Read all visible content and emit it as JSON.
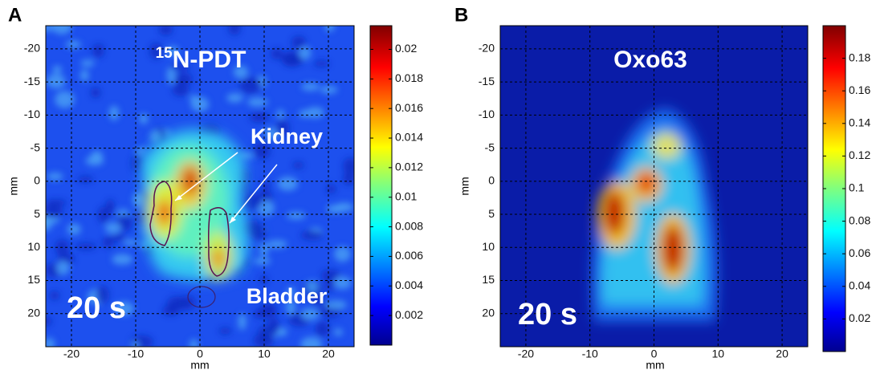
{
  "chart_data": [
    {
      "type": "heatmap",
      "panel_label": "A",
      "title_superscript": "15",
      "title": "N-PDT",
      "xlabel": "mm",
      "ylabel": "mm",
      "xlim": [
        -24,
        24
      ],
      "ylim": [
        -23.5,
        25
      ],
      "y_inverted": true,
      "xticks": [
        -20,
        -10,
        0,
        10,
        20
      ],
      "yticks": [
        -20,
        -15,
        -10,
        -5,
        0,
        5,
        10,
        15,
        20
      ],
      "grid": true,
      "colorbar": {
        "clim": [
          0,
          0.0216
        ],
        "ticks": [
          0.002,
          0.004,
          0.006,
          0.008,
          0.01,
          0.012,
          0.014,
          0.016,
          0.018,
          0.02
        ]
      },
      "annotations": [
        "Kidney",
        "Bladder",
        "20 s"
      ]
    },
    {
      "type": "heatmap",
      "panel_label": "B",
      "title": "Oxo63",
      "xlabel": "mm",
      "ylabel": "mm",
      "xlim": [
        -24,
        24
      ],
      "ylim": [
        -23.5,
        25
      ],
      "y_inverted": true,
      "xticks": [
        -20,
        -10,
        0,
        10,
        20
      ],
      "yticks": [
        -20,
        -15,
        -10,
        -5,
        0,
        5,
        10,
        15,
        20
      ],
      "grid": true,
      "colorbar": {
        "clim": [
          0,
          0.2
        ],
        "ticks": [
          0.02,
          0.04,
          0.06,
          0.08,
          0.1,
          0.12,
          0.14,
          0.16,
          0.18
        ]
      },
      "annotations": [
        "20 s"
      ]
    }
  ]
}
